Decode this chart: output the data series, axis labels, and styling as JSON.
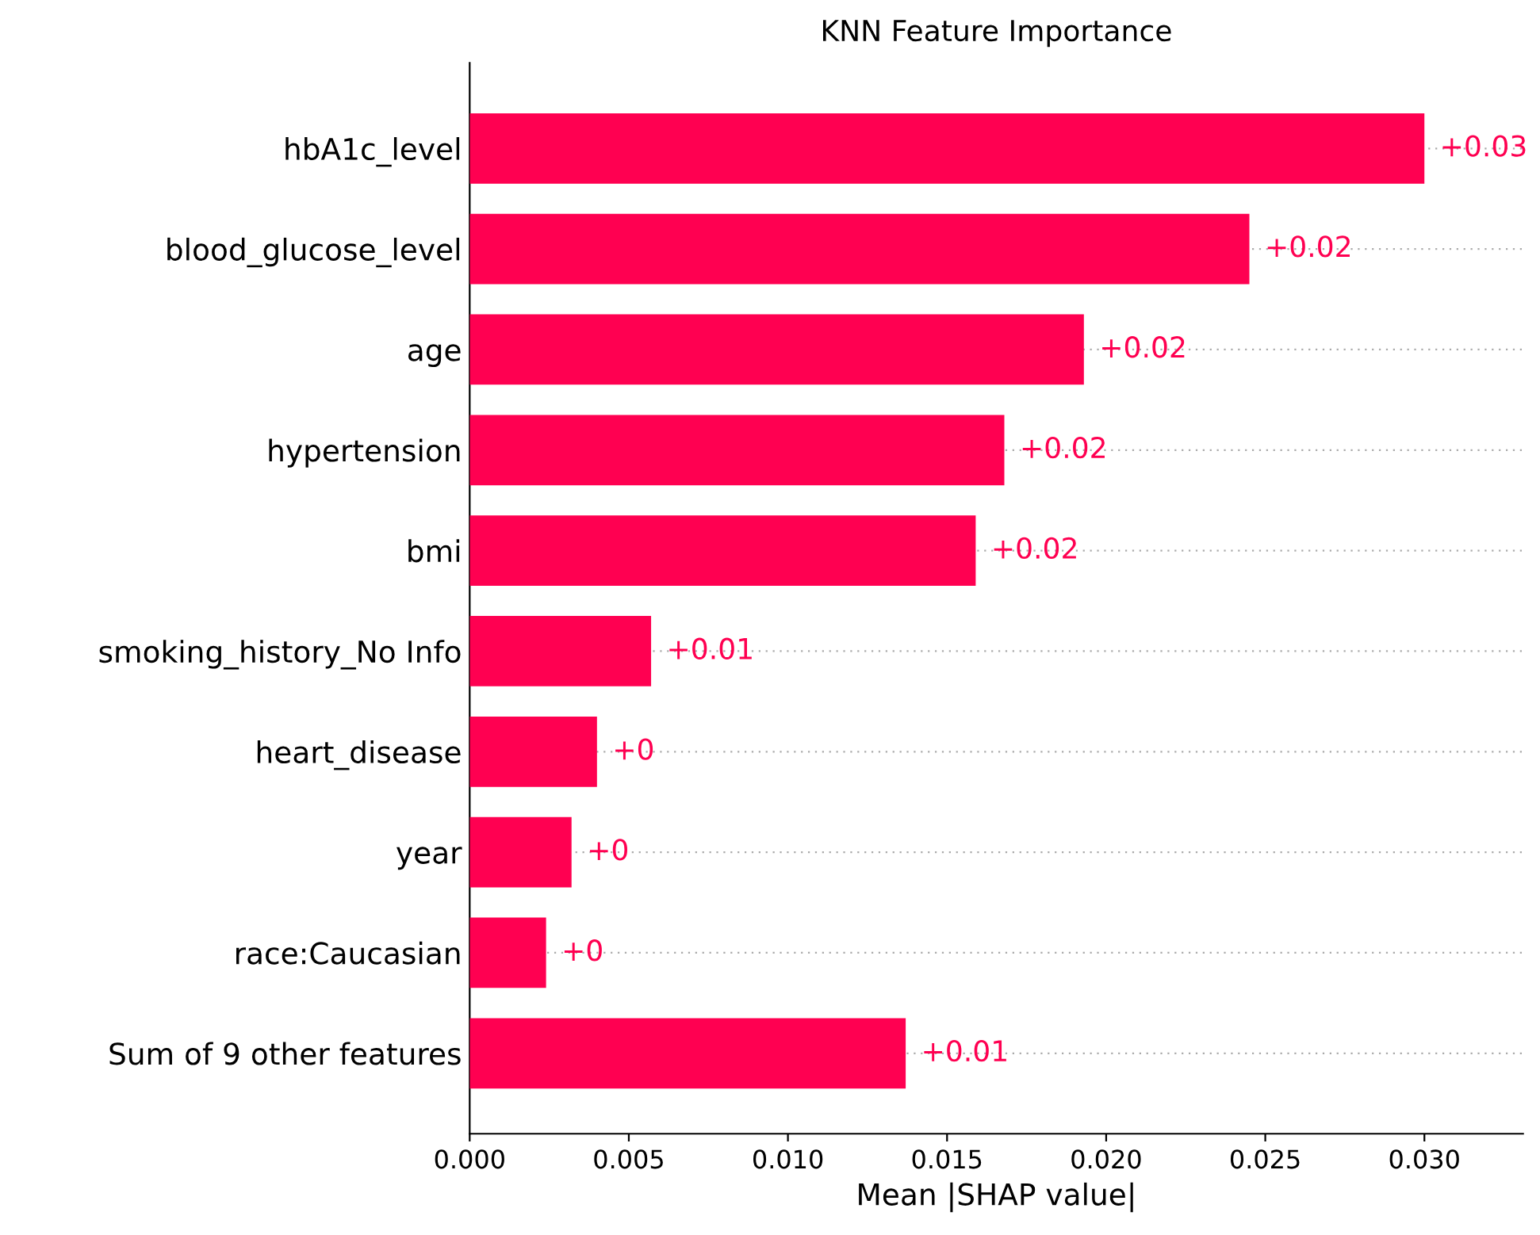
{
  "chart_data": {
    "type": "bar",
    "orientation": "horizontal",
    "title": "KNN Feature Importance",
    "xlabel": "Mean |SHAP value|",
    "categories": [
      "hbA1c_level",
      "blood_glucose_level",
      "age",
      "hypertension",
      "bmi",
      "smoking_history_No Info",
      "heart_disease",
      "year",
      "race:Caucasian",
      "Sum of 9 other features"
    ],
    "values": [
      0.03,
      0.0245,
      0.0193,
      0.0168,
      0.0159,
      0.0057,
      0.004,
      0.0032,
      0.0024,
      0.0137
    ],
    "value_labels": [
      "+0.03",
      "+0.02",
      "+0.02",
      "+0.02",
      "+0.02",
      "+0.01",
      "+0",
      "+0",
      "+0",
      "+0.01"
    ],
    "color": "#ff0051",
    "xlim": [
      0,
      0.0331
    ],
    "xticks": [
      {
        "value": 0,
        "label": "0.000"
      },
      {
        "value": 0.005,
        "label": "0.005"
      },
      {
        "value": 0.01,
        "label": "0.010"
      },
      {
        "value": 0.015,
        "label": "0.015"
      },
      {
        "value": 0.02,
        "label": "0.020"
      },
      {
        "value": 0.025,
        "label": "0.025"
      },
      {
        "value": 0.03,
        "label": "0.030"
      }
    ],
    "grid": "y"
  }
}
